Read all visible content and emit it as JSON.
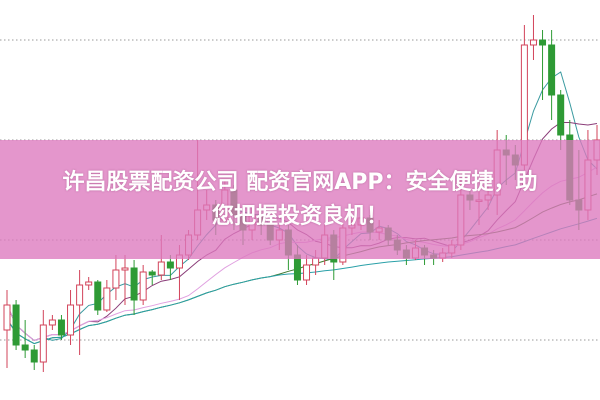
{
  "headline": {
    "line1": "许昌股票配资公司 配资官网APP：安全便捷，助",
    "line2": "您把握投资良机！"
  },
  "chart_data": {
    "type": "candlestick",
    "title": "",
    "xlabel": "",
    "ylabel": "",
    "ylim": [
      0,
      40
    ],
    "grid": "horizontal dotted",
    "legend": "none",
    "colors": {
      "up": "#d2435a",
      "down": "#2e9a35",
      "grid": "#9a9a9a",
      "banner": "#dc78be"
    },
    "moving_averages": [
      {
        "period": 5,
        "color": "#3a9aa0"
      },
      {
        "period": 10,
        "color": "#8a3c78"
      },
      {
        "period": 20,
        "color": "#e0a0e0"
      },
      {
        "period": 30,
        "color": "#3f7a2f"
      },
      {
        "period": 60,
        "color": "#2aa0a8"
      }
    ],
    "ohlc": [
      [
        7.0,
        11.0,
        3.2,
        9.5
      ],
      [
        9.5,
        10.0,
        5.0,
        5.5
      ],
      [
        5.5,
        8.0,
        4.2,
        5.0
      ],
      [
        5.0,
        5.5,
        3.0,
        3.8
      ],
      [
        3.8,
        9.0,
        2.8,
        7.5
      ],
      [
        7.5,
        8.5,
        7.0,
        8.0
      ],
      [
        8.0,
        8.5,
        6.0,
        6.5
      ],
      [
        6.5,
        11.0,
        5.5,
        9.5
      ],
      [
        9.5,
        13.0,
        4.5,
        11.5
      ],
      [
        11.5,
        12.3,
        11.0,
        11.8
      ],
      [
        11.8,
        12.0,
        8.5,
        9.0
      ],
      [
        9.0,
        12.0,
        8.8,
        11.2
      ],
      [
        11.2,
        14.5,
        10.0,
        13.0
      ],
      [
        13.0,
        14.5,
        9.5,
        13.2
      ],
      [
        13.2,
        14.0,
        8.5,
        10.0
      ],
      [
        10.0,
        13.5,
        9.5,
        12.8
      ],
      [
        12.8,
        13.0,
        11.5,
        12.5
      ],
      [
        12.5,
        16.5,
        12.0,
        13.8
      ],
      [
        13.8,
        14.5,
        12.0,
        13.2
      ],
      [
        13.2,
        15.5,
        10.0,
        14.5
      ],
      [
        14.5,
        17.0,
        14.0,
        16.5
      ],
      [
        16.5,
        26.0,
        16.0,
        19.0
      ],
      [
        19.0,
        21.0,
        18.0,
        19.5
      ],
      [
        19.5,
        20.0,
        16.5,
        18.0
      ],
      [
        18.0,
        22.0,
        17.5,
        21.0
      ],
      [
        21.0,
        21.5,
        17.0,
        18.5
      ],
      [
        18.5,
        19.0,
        15.5,
        17.0
      ],
      [
        17.0,
        19.5,
        16.0,
        18.5
      ],
      [
        18.5,
        19.0,
        16.5,
        17.5
      ],
      [
        17.5,
        18.0,
        15.5,
        16.0
      ],
      [
        16.0,
        17.5,
        15.0,
        17.0
      ],
      [
        17.0,
        17.5,
        13.0,
        14.5
      ],
      [
        14.5,
        15.5,
        11.5,
        12.0
      ],
      [
        12.0,
        14.5,
        11.5,
        13.5
      ],
      [
        13.5,
        15.0,
        12.5,
        14.2
      ],
      [
        14.2,
        17.5,
        13.5,
        16.5
      ],
      [
        16.5,
        17.0,
        12.0,
        13.8
      ],
      [
        13.8,
        17.8,
        13.5,
        17.2
      ],
      [
        17.2,
        18.0,
        16.5,
        17.5
      ],
      [
        17.5,
        19.0,
        17.0,
        18.2
      ],
      [
        18.2,
        18.5,
        16.0,
        16.8
      ],
      [
        16.8,
        18.0,
        16.0,
        17.2
      ],
      [
        17.2,
        17.5,
        15.5,
        16.0
      ],
      [
        16.0,
        16.5,
        14.5,
        15.0
      ],
      [
        15.0,
        15.5,
        13.5,
        14.2
      ],
      [
        14.2,
        16.0,
        14.0,
        15.2
      ],
      [
        15.2,
        15.5,
        13.5,
        14.5
      ],
      [
        14.5,
        15.0,
        13.5,
        14.2
      ],
      [
        14.2,
        15.2,
        13.8,
        14.7
      ],
      [
        14.7,
        16.0,
        14.2,
        15.5
      ],
      [
        15.5,
        22.0,
        15.0,
        20.5
      ],
      [
        20.5,
        21.0,
        19.0,
        20.0
      ],
      [
        20.0,
        21.0,
        17.5,
        20.0
      ],
      [
        20.0,
        21.5,
        19.0,
        20.5
      ],
      [
        20.5,
        27.0,
        18.5,
        25.0
      ],
      [
        25.0,
        26.5,
        21.5,
        24.5
      ],
      [
        24.5,
        25.5,
        22.0,
        23.5
      ],
      [
        23.5,
        37.5,
        23.0,
        35.5
      ],
      [
        35.5,
        38.5,
        34.0,
        36.0
      ],
      [
        36.0,
        37.0,
        30.0,
        35.5
      ],
      [
        35.5,
        37.0,
        28.0,
        30.5
      ],
      [
        30.5,
        31.0,
        25.0,
        26.5
      ],
      [
        26.5,
        28.0,
        19.5,
        20.0
      ],
      [
        20.0,
        25.0,
        17.0,
        19.0
      ],
      [
        19.0,
        27.0,
        18.0,
        24.0
      ],
      [
        24.0,
        27.5,
        22.5,
        26.0
      ]
    ]
  }
}
